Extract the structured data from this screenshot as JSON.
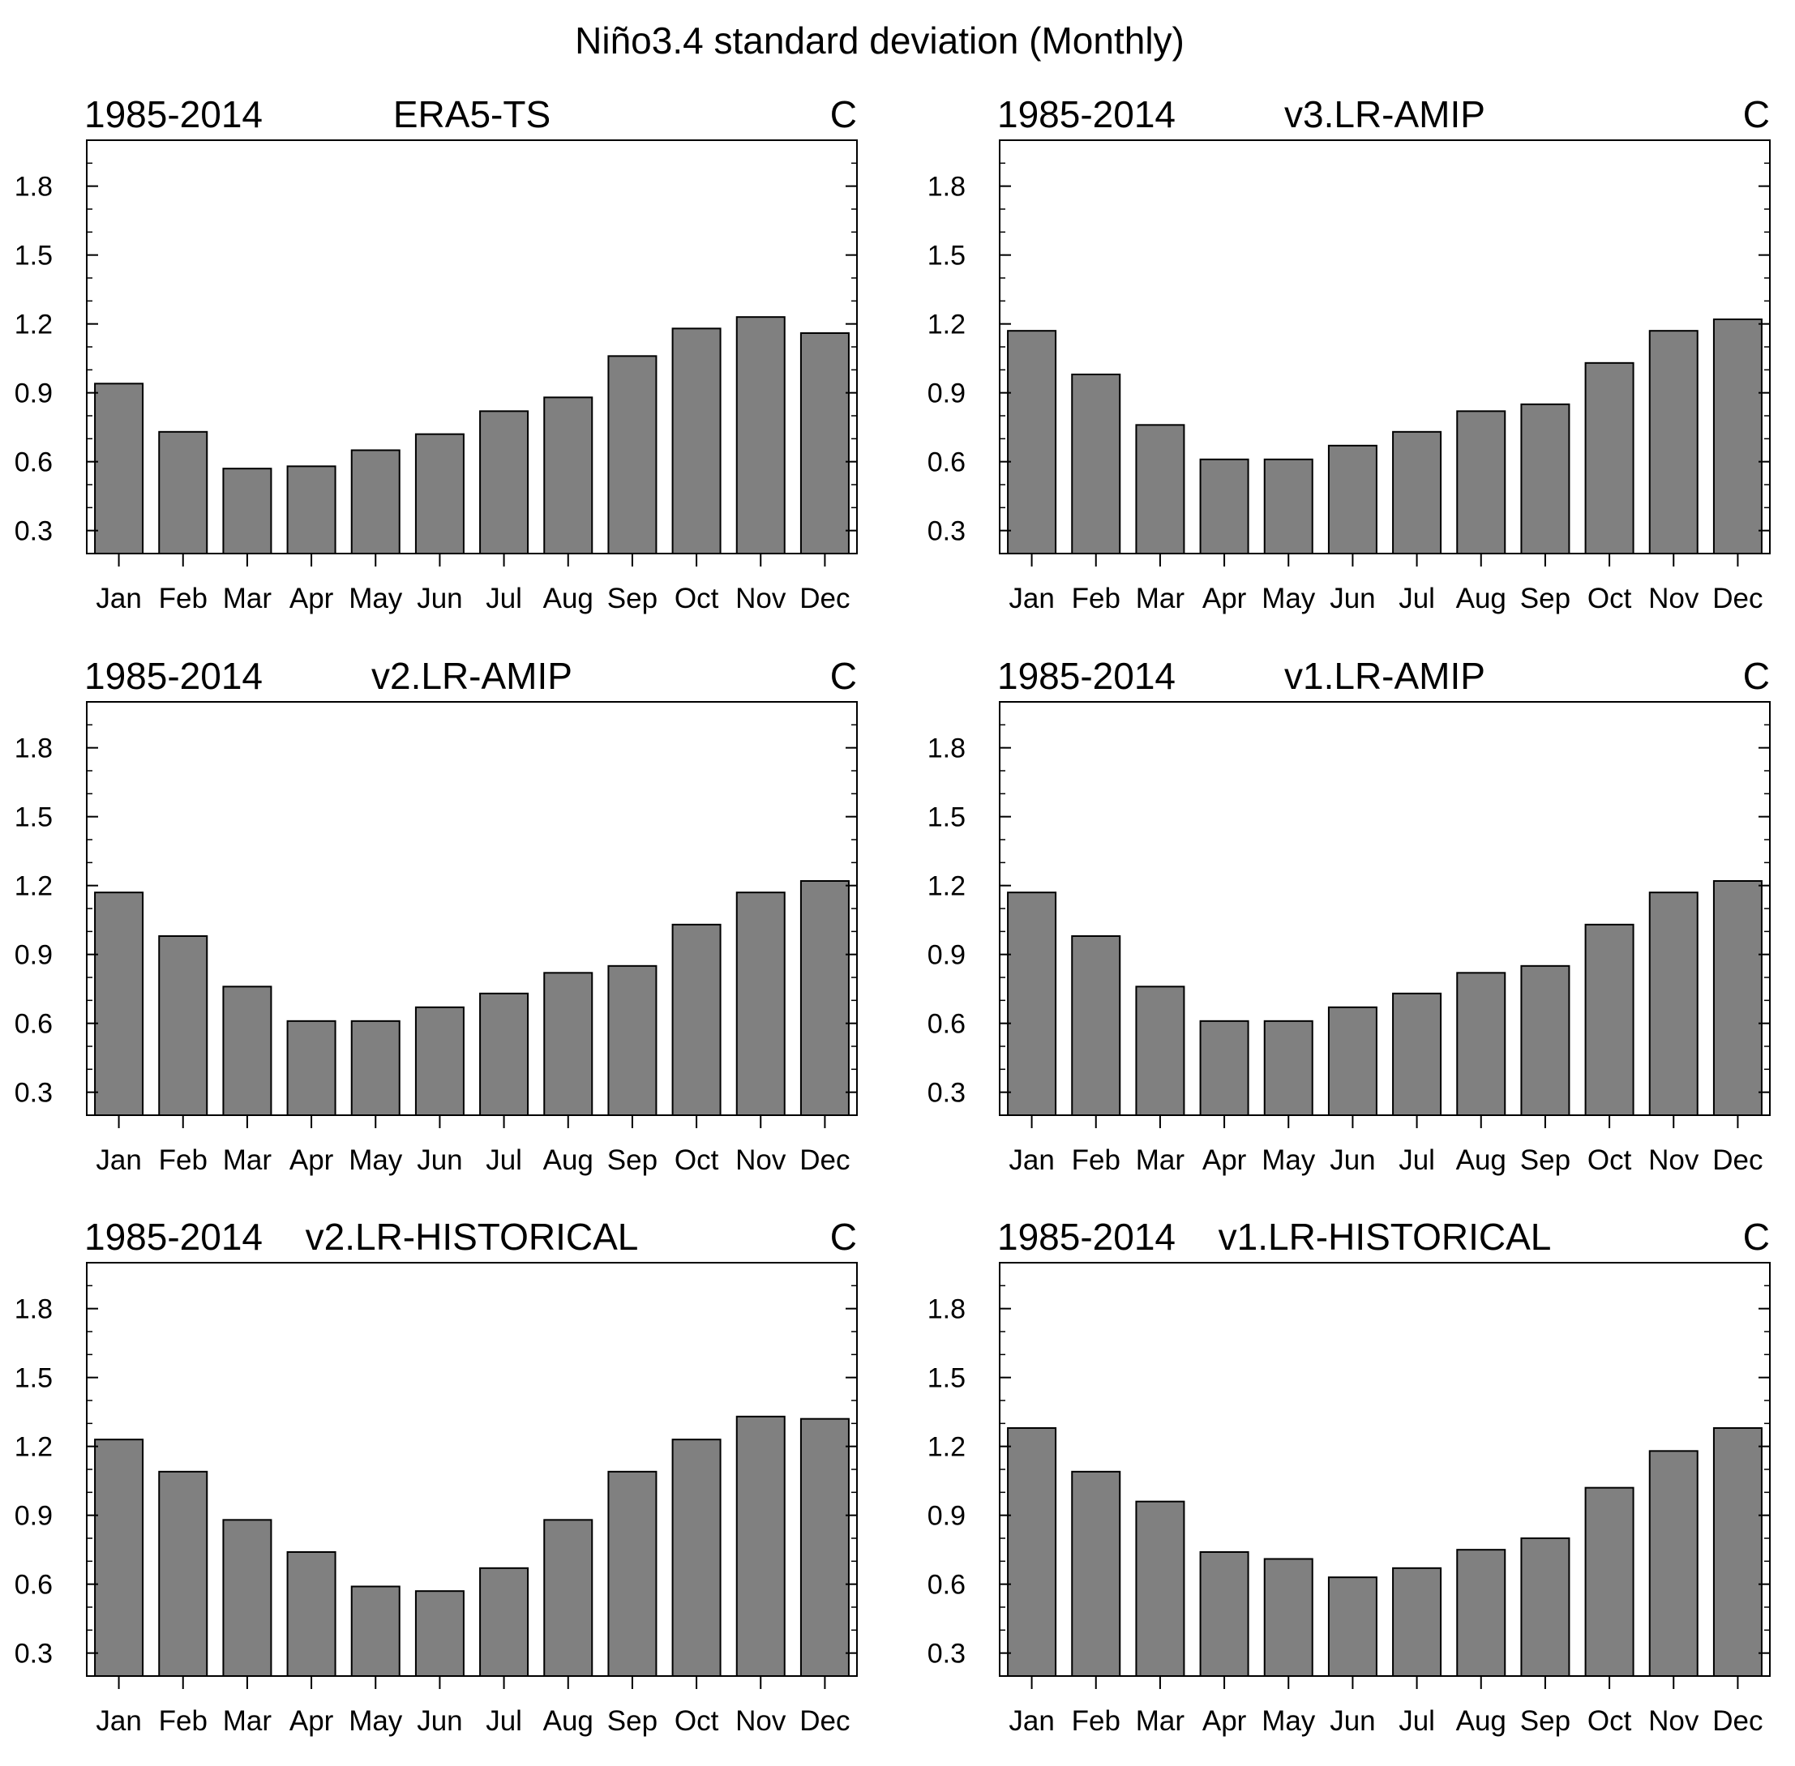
{
  "figure_title": "Niño3.4 standard deviation (Monthly)",
  "colors": {
    "bar_fill": "#808080",
    "bar_stroke": "#000000",
    "frame": "#000000",
    "background": "#ffffff"
  },
  "chart_data": [
    {
      "type": "bar",
      "period": "1985-2014",
      "title": "ERA5-TS",
      "units": "C",
      "categories": [
        "Jan",
        "Feb",
        "Mar",
        "Apr",
        "May",
        "Jun",
        "Jul",
        "Aug",
        "Sep",
        "Oct",
        "Nov",
        "Dec"
      ],
      "values": [
        0.94,
        0.73,
        0.57,
        0.58,
        0.65,
        0.72,
        0.82,
        0.88,
        1.06,
        1.18,
        1.23,
        1.16
      ],
      "ylim": [
        0.2,
        2.0
      ],
      "yticks": [
        "0.3",
        "0.6",
        "0.9",
        "1.2",
        "1.5",
        "1.8"
      ]
    },
    {
      "type": "bar",
      "period": "1985-2014",
      "title": "v3.LR-AMIP",
      "units": "C",
      "categories": [
        "Jan",
        "Feb",
        "Mar",
        "Apr",
        "May",
        "Jun",
        "Jul",
        "Aug",
        "Sep",
        "Oct",
        "Nov",
        "Dec"
      ],
      "values": [
        1.17,
        0.98,
        0.76,
        0.61,
        0.61,
        0.67,
        0.73,
        0.82,
        0.85,
        1.03,
        1.17,
        1.22
      ],
      "ylim": [
        0.2,
        2.0
      ],
      "yticks": [
        "0.3",
        "0.6",
        "0.9",
        "1.2",
        "1.5",
        "1.8"
      ]
    },
    {
      "type": "bar",
      "period": "1985-2014",
      "title": "v2.LR-AMIP",
      "units": "C",
      "categories": [
        "Jan",
        "Feb",
        "Mar",
        "Apr",
        "May",
        "Jun",
        "Jul",
        "Aug",
        "Sep",
        "Oct",
        "Nov",
        "Dec"
      ],
      "values": [
        1.17,
        0.98,
        0.76,
        0.61,
        0.61,
        0.67,
        0.73,
        0.82,
        0.85,
        1.03,
        1.17,
        1.22
      ],
      "ylim": [
        0.2,
        2.0
      ],
      "yticks": [
        "0.3",
        "0.6",
        "0.9",
        "1.2",
        "1.5",
        "1.8"
      ]
    },
    {
      "type": "bar",
      "period": "1985-2014",
      "title": "v1.LR-AMIP",
      "units": "C",
      "categories": [
        "Jan",
        "Feb",
        "Mar",
        "Apr",
        "May",
        "Jun",
        "Jul",
        "Aug",
        "Sep",
        "Oct",
        "Nov",
        "Dec"
      ],
      "values": [
        1.17,
        0.98,
        0.76,
        0.61,
        0.61,
        0.67,
        0.73,
        0.82,
        0.85,
        1.03,
        1.17,
        1.22
      ],
      "ylim": [
        0.2,
        2.0
      ],
      "yticks": [
        "0.3",
        "0.6",
        "0.9",
        "1.2",
        "1.5",
        "1.8"
      ]
    },
    {
      "type": "bar",
      "period": "1985-2014",
      "title": "v2.LR-HISTORICAL",
      "units": "C",
      "categories": [
        "Jan",
        "Feb",
        "Mar",
        "Apr",
        "May",
        "Jun",
        "Jul",
        "Aug",
        "Sep",
        "Oct",
        "Nov",
        "Dec"
      ],
      "values": [
        1.23,
        1.09,
        0.88,
        0.74,
        0.59,
        0.57,
        0.67,
        0.88,
        1.09,
        1.23,
        1.33,
        1.32
      ],
      "ylim": [
        0.2,
        2.0
      ],
      "yticks": [
        "0.3",
        "0.6",
        "0.9",
        "1.2",
        "1.5",
        "1.8"
      ]
    },
    {
      "type": "bar",
      "period": "1985-2014",
      "title": "v1.LR-HISTORICAL",
      "units": "C",
      "categories": [
        "Jan",
        "Feb",
        "Mar",
        "Apr",
        "May",
        "Jun",
        "Jul",
        "Aug",
        "Sep",
        "Oct",
        "Nov",
        "Dec"
      ],
      "values": [
        1.28,
        1.09,
        0.96,
        0.74,
        0.71,
        0.63,
        0.67,
        0.75,
        0.8,
        1.02,
        1.18,
        1.28
      ],
      "ylim": [
        0.2,
        2.0
      ],
      "yticks": [
        "0.3",
        "0.6",
        "0.9",
        "1.2",
        "1.5",
        "1.8"
      ]
    }
  ]
}
